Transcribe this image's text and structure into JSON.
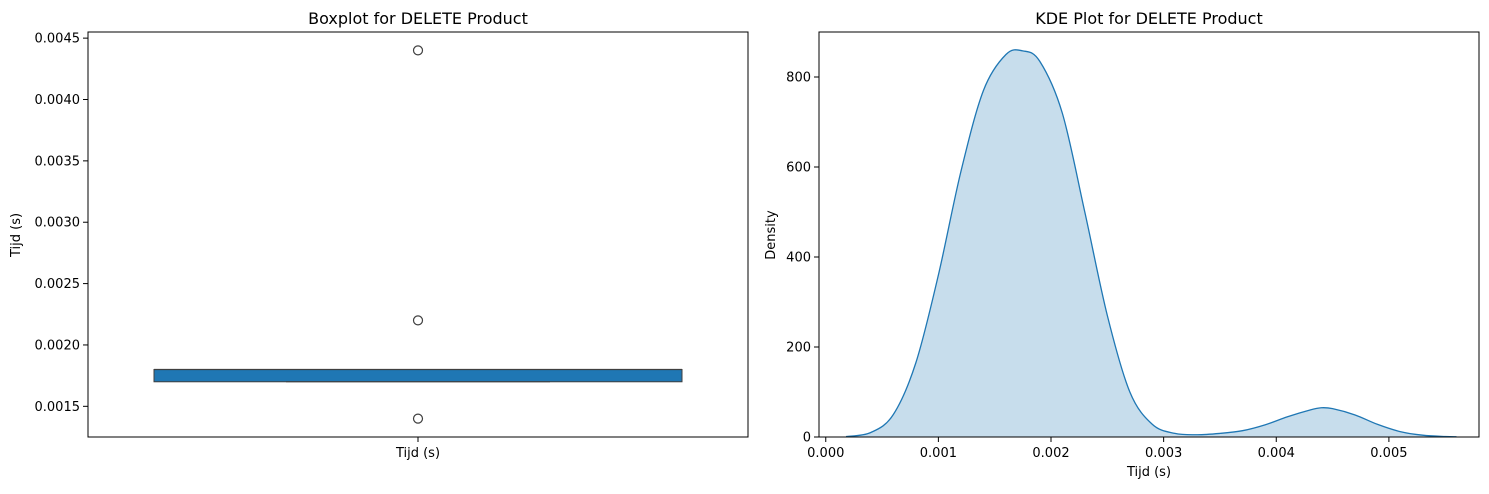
{
  "chart_data": [
    {
      "type": "box",
      "title": "Boxplot for DELETE Product",
      "xlabel": "",
      "ylabel": "Tijd (s)",
      "categories": [
        "Tijd (s)"
      ],
      "ylim": [
        0.00125,
        0.00455
      ],
      "yticks": [
        0.0015,
        0.002,
        0.0025,
        0.003,
        0.0035,
        0.004,
        0.0045
      ],
      "ytick_labels": [
        "0.0015",
        "0.0020",
        "0.0025",
        "0.0030",
        "0.0035",
        "0.0040",
        "0.0045"
      ],
      "box": {
        "q1": 0.0017,
        "median": 0.0018,
        "q3": 0.0018,
        "whisker_low": 0.0017,
        "whisker_high": 0.0018
      },
      "outliers": [
        0.0044,
        0.0022,
        0.0014
      ],
      "color": "#1f77b4",
      "grid": false
    },
    {
      "type": "area",
      "title": "KDE Plot for DELETE Product",
      "xlabel": "Tijd (s)",
      "ylabel": "Density",
      "xlim": [
        -6e-05,
        0.0058
      ],
      "ylim": [
        0,
        900
      ],
      "xticks": [
        0.0,
        0.001,
        0.002,
        0.003,
        0.004,
        0.005
      ],
      "xtick_labels": [
        "0.000",
        "0.001",
        "0.002",
        "0.003",
        "0.004",
        "0.005"
      ],
      "yticks": [
        0,
        200,
        400,
        600,
        800
      ],
      "ytick_labels": [
        "0",
        "200",
        "400",
        "600",
        "800"
      ],
      "x": [
        0.00018,
        0.0004,
        0.0006,
        0.0008,
        0.001,
        0.0012,
        0.0014,
        0.0016,
        0.00175,
        0.0019,
        0.0021,
        0.0023,
        0.0025,
        0.0027,
        0.0029,
        0.0031,
        0.0033,
        0.0035,
        0.0037,
        0.0039,
        0.0041,
        0.0043,
        0.0044,
        0.0045,
        0.0047,
        0.0049,
        0.0051,
        0.0053,
        0.0055,
        0.0056
      ],
      "y": [
        1,
        10,
        50,
        165,
        360,
        590,
        770,
        850,
        858,
        835,
        720,
        500,
        270,
        100,
        28,
        8,
        5,
        8,
        14,
        27,
        45,
        60,
        65,
        63,
        49,
        28,
        12,
        4,
        1,
        0.5
      ],
      "color": "#1f77b4",
      "grid": false
    }
  ]
}
